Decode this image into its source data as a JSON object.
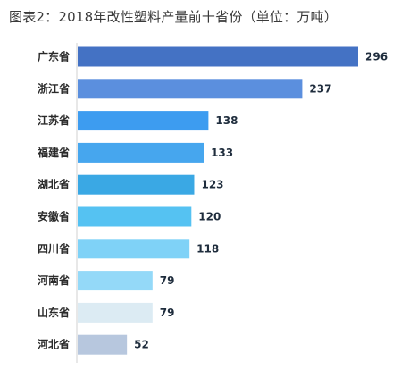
{
  "chart_data": {
    "type": "bar",
    "orientation": "horizontal",
    "title": "图表2：2018年改性塑料产量前十省份（单位：万吨）",
    "categories": [
      "广东省",
      "浙江省",
      "江苏省",
      "福建省",
      "湖北省",
      "安徽省",
      "四川省",
      "河南省",
      "山东省",
      "河北省"
    ],
    "values": [
      296,
      237,
      138,
      133,
      123,
      120,
      118,
      79,
      79,
      52
    ],
    "colors": [
      "#4472c4",
      "#5b8fde",
      "#3d9cf0",
      "#46a6ee",
      "#3aa8e4",
      "#55c2f2",
      "#7fd2f7",
      "#94d9f8",
      "#dcebf3",
      "#b7c7de"
    ],
    "xlim": [
      0,
      300
    ],
    "grid": false,
    "legend": "none"
  }
}
